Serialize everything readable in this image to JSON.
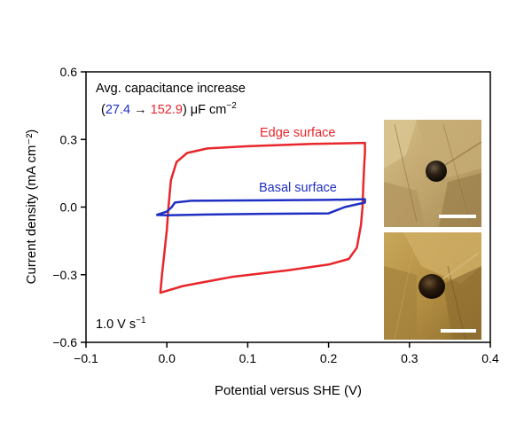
{
  "chart_data": {
    "type": "line",
    "xlabel": "Potential versus SHE (V)",
    "ylabel": "Current density (mA cm⁻²)",
    "xlim": [
      -0.1,
      0.4
    ],
    "ylim": [
      -0.6,
      0.6
    ],
    "x_ticks": [
      -0.1,
      0.0,
      0.1,
      0.2,
      0.3,
      0.4
    ],
    "x_tick_labels": [
      "−0.1",
      "0.0",
      "0.1",
      "0.2",
      "0.3",
      "0.4"
    ],
    "y_ticks": [
      -0.6,
      -0.3,
      0.0,
      0.3,
      0.6
    ],
    "y_tick_labels": [
      "−0.6",
      "−0.3",
      "0.0",
      "0.3",
      "0.6"
    ],
    "grid": false,
    "annotation": {
      "line1": "Avg. capacitance increase",
      "open": "(",
      "value_from": "27.4",
      "arrow": " → ",
      "value_to": "152.9",
      "close": ") μF cm",
      "unit_exp": "−2"
    },
    "scan_rate": {
      "text": "1.0 V s",
      "exp": "−1"
    },
    "series": [
      {
        "name": "Edge surface",
        "color": "#e8262b",
        "points": [
          [
            0.245,
            0.24
          ],
          [
            0.245,
            0.285
          ],
          [
            0.18,
            0.28
          ],
          [
            0.1,
            0.27
          ],
          [
            0.05,
            0.26
          ],
          [
            0.025,
            0.24
          ],
          [
            0.012,
            0.2
          ],
          [
            0.005,
            0.12
          ],
          [
            0.002,
            0.0
          ],
          [
            0.0,
            -0.1
          ],
          [
            -0.003,
            -0.2
          ],
          [
            -0.006,
            -0.3
          ],
          [
            -0.008,
            -0.38
          ],
          [
            0.02,
            -0.35
          ],
          [
            0.08,
            -0.31
          ],
          [
            0.15,
            -0.28
          ],
          [
            0.2,
            -0.255
          ],
          [
            0.225,
            -0.23
          ],
          [
            0.235,
            -0.18
          ],
          [
            0.24,
            -0.08
          ],
          [
            0.242,
            0.0
          ],
          [
            0.243,
            0.1
          ],
          [
            0.244,
            0.18
          ],
          [
            0.245,
            0.24
          ]
        ]
      },
      {
        "name": "Basal surface",
        "color": "#1f2fc4",
        "points": [
          [
            -0.013,
            -0.035
          ],
          [
            0.0,
            -0.02
          ],
          [
            0.006,
            0.0
          ],
          [
            0.01,
            0.02
          ],
          [
            0.03,
            0.028
          ],
          [
            0.12,
            0.03
          ],
          [
            0.2,
            0.032
          ],
          [
            0.245,
            0.035
          ],
          [
            0.245,
            0.02
          ],
          [
            0.22,
            0.0
          ],
          [
            0.2,
            -0.028
          ],
          [
            0.12,
            -0.03
          ],
          [
            0.05,
            -0.033
          ],
          [
            0.0,
            -0.036
          ],
          [
            -0.013,
            -0.035
          ]
        ]
      }
    ],
    "colors": {
      "axis": "#000000",
      "edge": "#e8262b",
      "basal": "#1f2fc4"
    }
  },
  "insets": [
    {
      "name": "Edge surface droplet photo",
      "colors": [
        "#c9b078",
        "#8a7347",
        "#3a2a18"
      ]
    },
    {
      "name": "Basal surface droplet photo",
      "colors": [
        "#bb9648",
        "#7b5b28",
        "#2a1c0c"
      ]
    }
  ]
}
